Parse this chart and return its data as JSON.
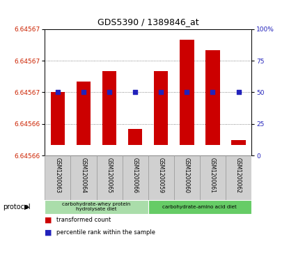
{
  "title": "GDS5390 / 1389846_at",
  "samples": [
    "GSM1200063",
    "GSM1200064",
    "GSM1200065",
    "GSM1200066",
    "GSM1200059",
    "GSM1200060",
    "GSM1200061",
    "GSM1200062"
  ],
  "transformed_counts": [
    6.64567,
    6.645672,
    6.645674,
    6.645663,
    6.645674,
    6.64568,
    6.645678,
    6.645661
  ],
  "percentile_ranks": [
    50,
    50,
    50,
    50,
    50,
    50,
    50,
    50
  ],
  "bar_bottom": 6.64566,
  "ylim": [
    6.645658,
    6.645682
  ],
  "left_ytick_vals": [
    6.64566,
    6.645663,
    6.645666,
    6.645669,
    6.645672,
    6.645675,
    6.645678,
    6.645681
  ],
  "left_ytick_labels": [
    "6.64566",
    "6.64566",
    "6.64566",
    "6.64567",
    "6.64567",
    "6.64567",
    "6.64567",
    ""
  ],
  "right_ytick_vals": [
    0,
    25,
    50,
    75,
    100
  ],
  "right_ytick_labels": [
    "0",
    "25",
    "50",
    "75",
    "100%"
  ],
  "grid_pct_vals": [
    0,
    25,
    50,
    75,
    100
  ],
  "bar_color": "#cc0000",
  "dot_color": "#2222bb",
  "protocol_groups": [
    {
      "label": "carbohydrate-whey protein\nhydrolysate diet",
      "start": 0,
      "end": 3,
      "color": "#aaddaa"
    },
    {
      "label": "carbohydrate-amino acid diet",
      "start": 4,
      "end": 7,
      "color": "#66cc66"
    }
  ],
  "legend_bar_label": "transformed count",
  "legend_dot_label": "percentile rank within the sample",
  "protocol_label": "protocol",
  "ylabel_left_color": "#cc2200",
  "ylabel_right_color": "#2222bb",
  "grid_color": "#666666",
  "title_fontsize": 9
}
